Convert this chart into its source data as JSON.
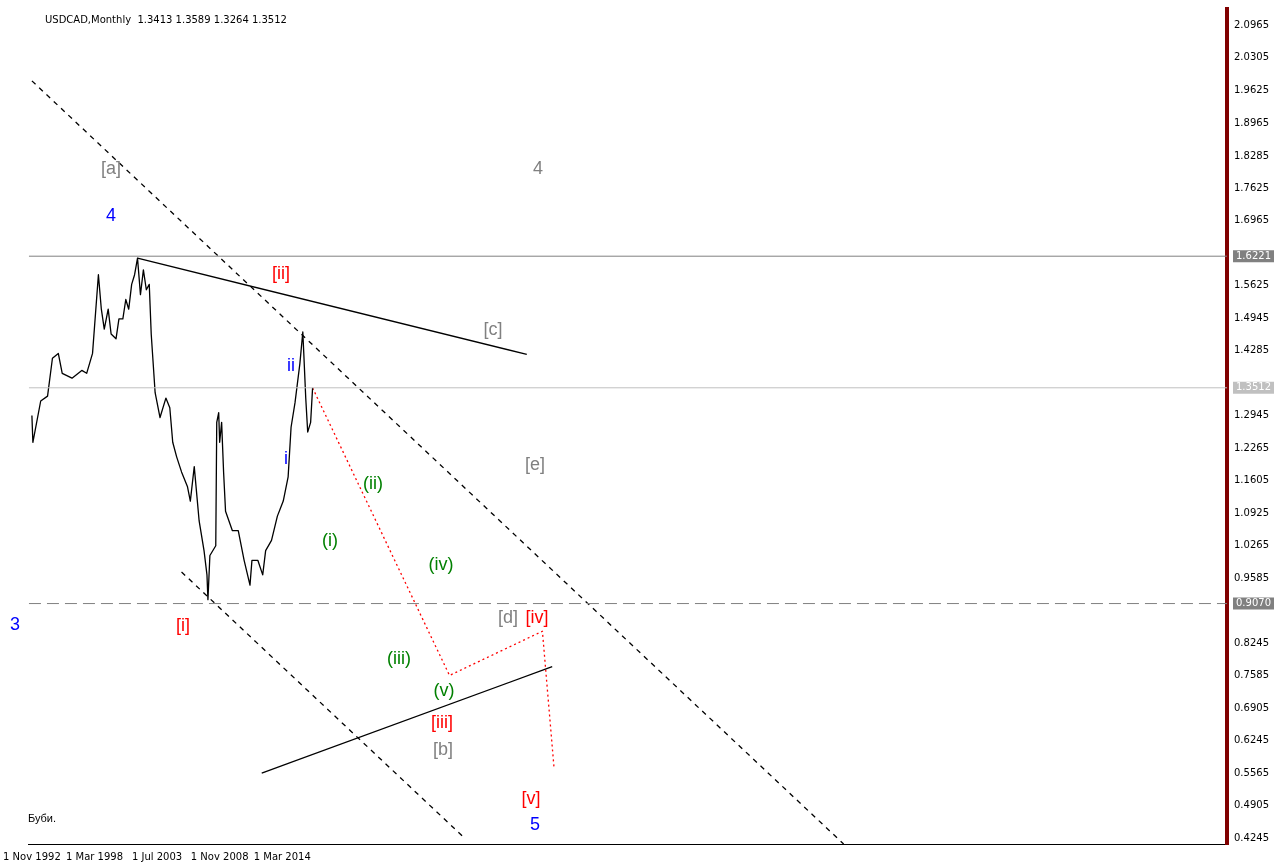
{
  "chart_data": {
    "type": "line",
    "title": "USDCAD,Monthly  1.3413 1.3589 1.3264 1.3512",
    "xlim": [
      "1992-08",
      "2094-09"
    ],
    "xticks": [
      {
        "value": "1992-11-01",
        "label": "1 Nov 1992"
      },
      {
        "value": "1998-03-01",
        "label": "1 Mar 1998"
      },
      {
        "value": "2003-07-01",
        "label": "1 Jul 2003"
      },
      {
        "value": "2008-11-01",
        "label": "1 Nov 2008"
      },
      {
        "value": "2014-03-01",
        "label": "1 Mar 2014"
      }
    ],
    "ylim": [
      0.412,
      2.131
    ],
    "yticks": [
      2.0965,
      2.0305,
      1.9625,
      1.8965,
      1.8285,
      1.7625,
      1.6965,
      1.5625,
      1.4945,
      1.4285,
      1.2945,
      1.2265,
      1.1605,
      1.0925,
      1.0265,
      0.9585,
      0.8245,
      0.7585,
      0.6905,
      0.6245,
      0.5565,
      0.4905,
      0.4245
    ],
    "grid": false,
    "legend": false,
    "marker": "none",
    "series": [
      {
        "color": "#000000",
        "line_style": "solid",
        "x": [
          "1992-11",
          "1992-12",
          "1993-08",
          "1994-03",
          "1994-08",
          "1995-02",
          "1995-06",
          "1996-04",
          "1997-02",
          "1997-07",
          "1998-01",
          "1998-07",
          "1998-10",
          "1999-01",
          "1999-05",
          "1999-08",
          "2000-01",
          "2000-04",
          "2000-08",
          "2000-11",
          "2001-02",
          "2001-05",
          "2001-08",
          "2001-11",
          "2002-02",
          "2002-05",
          "2002-08",
          "2002-11",
          "2003-01",
          "2003-05",
          "2003-10",
          "2004-04",
          "2004-08",
          "2004-11",
          "2005-03",
          "2005-08",
          "2006-02",
          "2006-05",
          "2006-09",
          "2007-02",
          "2007-07",
          "2007-10",
          "2007-11",
          "2008-01",
          "2008-07",
          "2008-08",
          "2008-10",
          "2008-11",
          "2009-01",
          "2009-03",
          "2009-05",
          "2009-12",
          "2010-06",
          "2010-12",
          "2011-06",
          "2011-08",
          "2012-02",
          "2012-07",
          "2012-10",
          "2013-04",
          "2013-10",
          "2014-04",
          "2014-09",
          "2014-12",
          "2015-04",
          "2015-09",
          "2015-12",
          "2016-01",
          "2016-03",
          "2016-05",
          "2016-08",
          "2016-10"
        ],
        "values": [
          1.294,
          1.239,
          1.324,
          1.334,
          1.412,
          1.422,
          1.381,
          1.371,
          1.387,
          1.381,
          1.422,
          1.584,
          1.513,
          1.472,
          1.513,
          1.462,
          1.452,
          1.493,
          1.493,
          1.533,
          1.513,
          1.564,
          1.584,
          1.618,
          1.543,
          1.594,
          1.553,
          1.564,
          1.462,
          1.341,
          1.29,
          1.33,
          1.31,
          1.239,
          1.209,
          1.178,
          1.148,
          1.118,
          1.189,
          1.077,
          1.016,
          0.966,
          0.915,
          1.006,
          1.026,
          1.28,
          1.3,
          1.239,
          1.28,
          1.178,
          1.097,
          1.057,
          1.057,
          0.996,
          0.945,
          0.996,
          0.996,
          0.966,
          1.016,
          1.037,
          1.087,
          1.118,
          1.168,
          1.27,
          1.32,
          1.401,
          1.466,
          1.422,
          1.33,
          1.26,
          1.28,
          1.351
        ]
      },
      {
        "color": "#000000",
        "line_style": "solid",
        "x": [
          "2001-11",
          "2035-01"
        ],
        "values": [
          1.618,
          1.42
        ]
      },
      {
        "color": "#000000",
        "line_style": "solid",
        "x": [
          "2012-06",
          "2037-03"
        ],
        "values": [
          0.558,
          0.777
        ]
      },
      {
        "color": "#000000",
        "line_style": "dashed",
        "x": [
          "1992-11",
          "2062-01"
        ],
        "values": [
          1.983,
          0.412
        ]
      },
      {
        "color": "#000000",
        "line_style": "dashed",
        "x": [
          "2005-08",
          "2029-09"
        ],
        "values": [
          0.972,
          0.425
        ]
      },
      {
        "color": "#ff0000",
        "line_style": "dotted",
        "x": [
          "2016-10",
          "2028-06",
          "2036-05",
          "2037-05"
        ],
        "values": [
          1.351,
          0.759,
          0.85,
          0.566
        ]
      }
    ],
    "ref_lines": [
      {
        "axis": "y",
        "value": 1.6221,
        "label": "1.6221",
        "color": "#808080",
        "line_style": "solid"
      },
      {
        "axis": "y",
        "value": 1.3512,
        "label": "1.3512",
        "color": "#c0c0c0",
        "line_style": "solid"
      },
      {
        "axis": "y",
        "value": 0.907,
        "label": "0.9070",
        "color": "#808080",
        "line_style": "dashed"
      }
    ],
    "annotations": [
      "[a]",
      "4",
      "4",
      "[ii]",
      "[c]",
      "ii",
      "i",
      "[e]",
      "(ii)",
      "(i)",
      "(iv)",
      "3",
      "[i]",
      "[d]",
      "[iv]",
      "(iii)",
      "(v)",
      "[iii]",
      "[b]",
      "[v]",
      "5",
      "Буби."
    ]
  }
}
